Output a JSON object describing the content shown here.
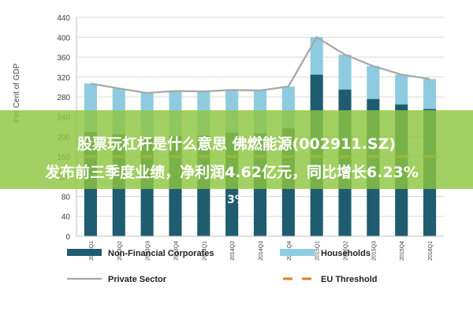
{
  "chart_data": {
    "type": "bar",
    "stacked": true,
    "ylabel": "Per Cent of GDP",
    "ylim": [
      0,
      440
    ],
    "yticks": [
      0,
      40,
      80,
      120,
      160,
      200,
      240,
      280,
      320,
      360,
      400,
      440
    ],
    "grid": true,
    "categories": [
      "2013Q1",
      "2013Q2",
      "2013Q3",
      "2013Q4",
      "2014Q1",
      "2014Q2",
      "2014Q3",
      "2014Q4",
      "2015Q1",
      "2015Q2",
      "2015Q3",
      "2015Q4",
      "2016Q1"
    ],
    "series": [
      {
        "name": "Non-Financial Corporates",
        "type": "bar",
        "color": "#1f5c70",
        "values": [
          210,
          205,
          198,
          202,
          203,
          208,
          207,
          217,
          325,
          295,
          276,
          265,
          256
        ]
      },
      {
        "name": "Households",
        "type": "bar",
        "color": "#8fcbe0",
        "values": [
          97,
          92,
          90,
          90,
          88,
          86,
          86,
          84,
          75,
          70,
          66,
          60,
          60
        ]
      },
      {
        "name": "Private Sector",
        "type": "line",
        "color": "#a6a6a6",
        "values": [
          307,
          297,
          288,
          292,
          291,
          294,
          293,
          301,
          400,
          365,
          342,
          325,
          316
        ]
      },
      {
        "name": "EU Threshold",
        "type": "line",
        "style": "dashed",
        "color": "#e07b2a",
        "values": [
          160,
          160,
          160,
          160,
          160,
          160,
          160,
          160,
          160,
          160,
          160,
          160,
          160
        ]
      }
    ],
    "legend_position": "bottom"
  },
  "banner": {
    "line1": "股票玩杠杆是什么意思 佛燃能源(002911.SZ)",
    "line2": "发布前三季度业绩，净利润4.62亿元，同比增长6.23%",
    "line3": "3%"
  }
}
